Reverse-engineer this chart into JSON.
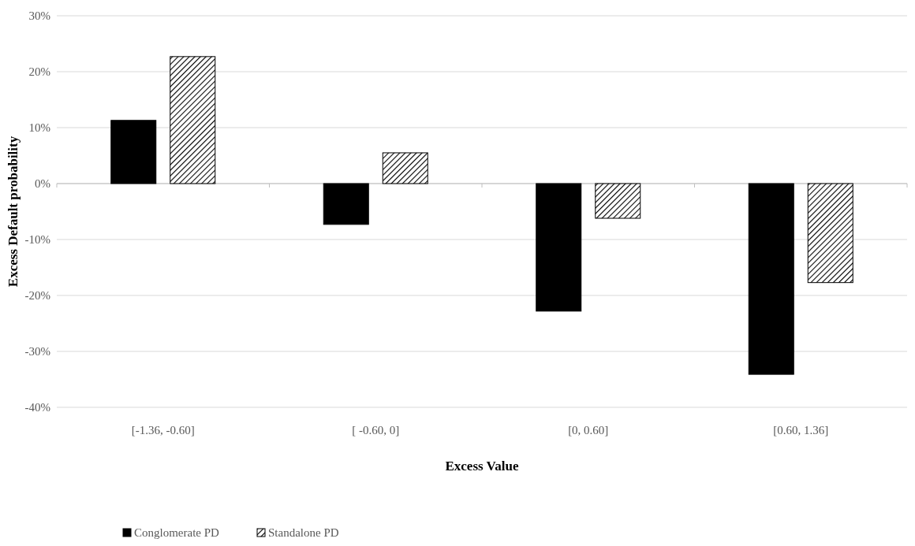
{
  "chart_data": {
    "type": "bar",
    "xlabel": "Excess Value",
    "ylabel": "Excess Default probability",
    "categories": [
      "[-1.36, -0.60]",
      "[ -0.60, 0]",
      "[0, 0.60]",
      "[0.60, 1.36]"
    ],
    "series": [
      {
        "name": "Conglomerate PD",
        "color": "#000000",
        "values": [
          11.3,
          -7.3,
          -22.8,
          -34.1
        ]
      },
      {
        "name": "Standalone PD",
        "color": "#000000",
        "values": [
          22.7,
          5.5,
          -6.2,
          -17.7
        ]
      }
    ],
    "ylim": [
      -40,
      30
    ],
    "yticks": [
      {
        "value": -40,
        "label": "-40%"
      },
      {
        "value": -30,
        "label": "-30%"
      },
      {
        "value": -20,
        "label": "-20%"
      },
      {
        "value": -10,
        "label": "-10%"
      },
      {
        "value": 0,
        "label": "0%"
      },
      {
        "value": 10,
        "label": "10%"
      },
      {
        "value": 20,
        "label": "20%"
      },
      {
        "value": 30,
        "label": "30%"
      }
    ],
    "grid": "y",
    "legend": "bottom left"
  }
}
